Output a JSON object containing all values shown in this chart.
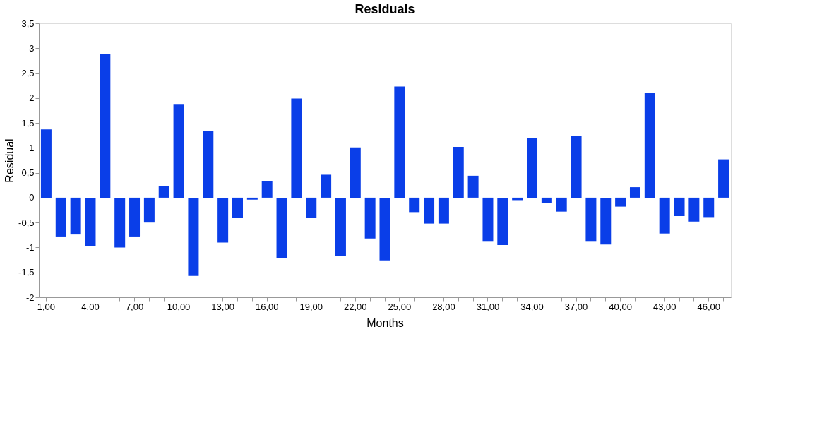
{
  "chart_data": {
    "type": "bar",
    "title": "Residuals",
    "xlabel": "Months",
    "ylabel": "Residual",
    "categories": [
      "1,00",
      null,
      null,
      "4,00",
      null,
      null,
      "7,00",
      null,
      null,
      "10,00",
      null,
      null,
      "13,00",
      null,
      null,
      "16,00",
      null,
      null,
      "19,00",
      null,
      null,
      "22,00",
      null,
      null,
      "25,00",
      null,
      null,
      "28,00",
      null,
      null,
      "31,00",
      null,
      null,
      "34,00",
      null,
      null,
      "37,00",
      null,
      null,
      "40,00",
      null,
      null,
      "43,00",
      null,
      null,
      "46,00",
      null
    ],
    "values": [
      1.37,
      -0.78,
      -0.74,
      -0.98,
      2.89,
      -1.0,
      -0.78,
      -0.5,
      0.23,
      1.88,
      -1.57,
      1.33,
      -0.9,
      -0.41,
      -0.04,
      0.33,
      -1.22,
      1.99,
      -0.41,
      0.46,
      -1.17,
      1.01,
      -0.82,
      -1.26,
      2.23,
      -0.29,
      -0.52,
      -0.52,
      1.02,
      0.44,
      -0.87,
      -0.95,
      -0.05,
      1.19,
      -0.11,
      -0.28,
      1.24,
      -0.87,
      -0.94,
      -0.18,
      0.21,
      2.1,
      -0.72,
      -0.37,
      -0.48,
      -0.39,
      0.77
    ],
    "color": "#0a3ee8",
    "ylim": [
      -2,
      3.5
    ],
    "yticks": [
      {
        "value": -2,
        "label": "-2"
      },
      {
        "value": -1.5,
        "label": "-1,5"
      },
      {
        "value": -1,
        "label": "-1"
      },
      {
        "value": -0.5,
        "label": "-0,5"
      },
      {
        "value": 0,
        "label": "0"
      },
      {
        "value": 0.5,
        "label": "0,5"
      },
      {
        "value": 1,
        "label": "1"
      },
      {
        "value": 1.5,
        "label": "1,5"
      },
      {
        "value": 2,
        "label": "2"
      },
      {
        "value": 2.5,
        "label": "2,5"
      },
      {
        "value": 3,
        "label": "3"
      },
      {
        "value": 3.5,
        "label": "3,5"
      }
    ],
    "grid": false,
    "legend": false
  }
}
